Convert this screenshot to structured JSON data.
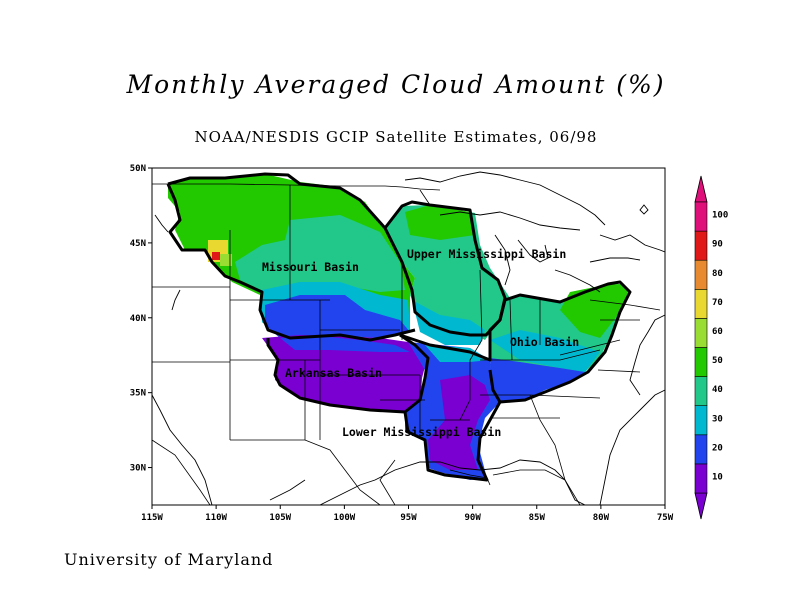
{
  "title": "Monthly Averaged Cloud Amount (%)",
  "subtitle": "NOAA/NESDIS GCIP Satellite Estimates, 06/98",
  "footer": "University of Maryland",
  "map": {
    "lon_range": [
      -115,
      -75
    ],
    "lat_range": [
      27.5,
      50
    ],
    "x_ticks": [
      "115W",
      "110W",
      "105W",
      "100W",
      "95W",
      "90W",
      "85W",
      "80W",
      "75W"
    ],
    "y_ticks": [
      "30N",
      "35N",
      "40N",
      "45N",
      "50N"
    ],
    "basins": [
      {
        "name": "Missouri Basin",
        "lon": -103.5,
        "lat": 44.8
      },
      {
        "name": "Upper Mississippi Basin",
        "lon": -93.7,
        "lat": 45.6
      },
      {
        "name": "Ohio Basin",
        "lon": -86.3,
        "lat": 38.3
      },
      {
        "name": "Arkansas Basin",
        "lon": -104.2,
        "lat": 36.3
      },
      {
        "name": "Lower Mississippi Basin",
        "lon": -98.2,
        "lat": 32.1
      }
    ]
  },
  "colorbar": {
    "labels": [
      "10",
      "20",
      "30",
      "40",
      "50",
      "60",
      "70",
      "80",
      "90",
      "100"
    ],
    "colors": [
      "#7a00d2",
      "#2244ee",
      "#00b8d0",
      "#22c88a",
      "#22c800",
      "#99dd33",
      "#e8d830",
      "#e88a30",
      "#e01818",
      "#e0107a"
    ]
  }
}
